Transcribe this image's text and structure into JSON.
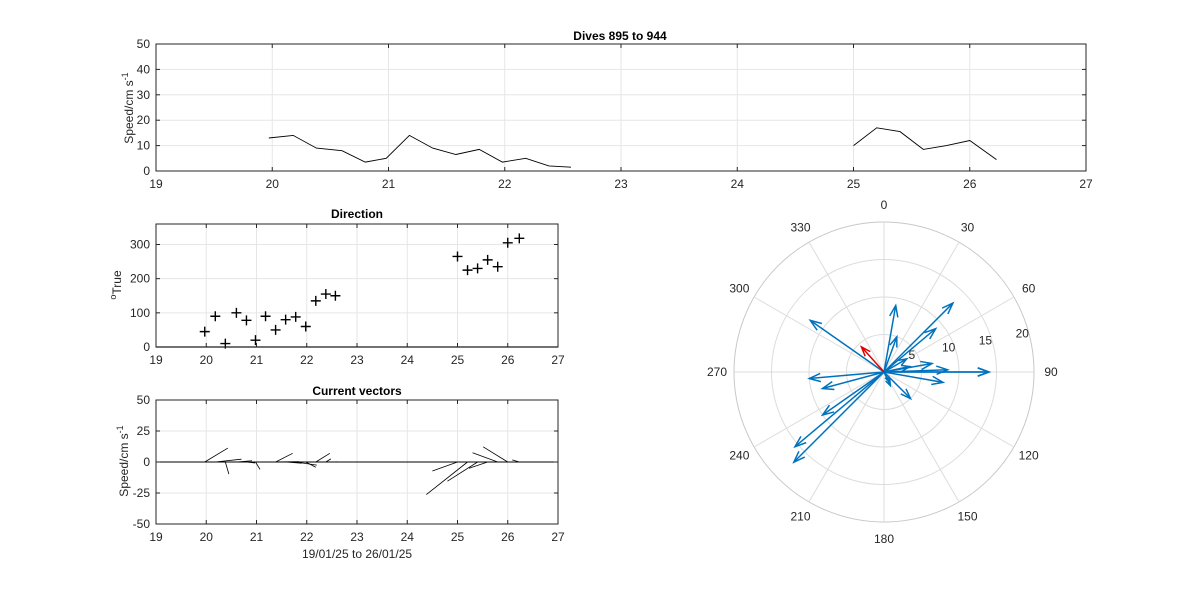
{
  "chart_data": [
    {
      "type": "line",
      "title": "Dives 895 to 944",
      "ylabel": "Speed/cm s",
      "ylabel_sup": "-1",
      "xlim": [
        19,
        27
      ],
      "ylim": [
        0,
        50
      ],
      "xticks": [
        19,
        20,
        21,
        22,
        23,
        24,
        25,
        26,
        27
      ],
      "yticks": [
        0,
        10,
        20,
        30,
        40,
        50
      ],
      "grid": true,
      "segments": [
        {
          "x": [
            19.97,
            20.18,
            20.38,
            20.6,
            20.8,
            20.98,
            21.18,
            21.38,
            21.58,
            21.78,
            21.98,
            22.18,
            22.38,
            22.57
          ],
          "y": [
            13,
            14,
            9,
            8,
            3.5,
            5,
            14,
            9,
            6.5,
            8.5,
            3.5,
            5,
            2,
            1.5
          ]
        },
        {
          "x": [
            25.0,
            25.2,
            25.4,
            25.6,
            25.8,
            26.0,
            26.23
          ],
          "y": [
            10,
            17,
            15.5,
            8.5,
            10,
            12,
            4.5
          ]
        }
      ]
    },
    {
      "type": "scatter",
      "title": "Direction",
      "ylabel": "True",
      "ylabel_prefix": "o",
      "xlim": [
        19,
        27
      ],
      "ylim": [
        0,
        360
      ],
      "xticks": [
        19,
        20,
        21,
        22,
        23,
        24,
        25,
        26,
        27
      ],
      "yticks": [
        0,
        100,
        200,
        300
      ],
      "grid": true,
      "x": [
        19.97,
        20.18,
        20.38,
        20.6,
        20.8,
        20.98,
        21.18,
        21.38,
        21.58,
        21.78,
        21.98,
        22.18,
        22.38,
        22.57,
        25.0,
        25.2,
        25.4,
        25.6,
        25.8,
        26.0,
        26.23
      ],
      "y": [
        45,
        90,
        10,
        100,
        78,
        20,
        90,
        50,
        80,
        88,
        60,
        135,
        155,
        150,
        265,
        225,
        230,
        255,
        235,
        305,
        318
      ]
    },
    {
      "type": "line",
      "title": "Current vectors",
      "ylabel": "Speed/cm s",
      "ylabel_sup": "-1",
      "xlabel": "19/01/25 to 26/01/25",
      "xlim": [
        19,
        27
      ],
      "ylim": [
        -50,
        50
      ],
      "xticks": [
        19,
        20,
        21,
        22,
        23,
        24,
        25,
        26,
        27
      ],
      "yticks": [
        -50,
        -25,
        0,
        25,
        50
      ],
      "grid": true,
      "vectors": [
        {
          "x": 19.97,
          "u": 0.46,
          "v": 0.45
        },
        {
          "x": 20.18,
          "u": 0.52,
          "v": 0.09
        },
        {
          "x": 20.38,
          "u": 0.07,
          "v": -0.39
        },
        {
          "x": 20.6,
          "u": 0.31,
          "v": 0.04
        },
        {
          "x": 20.8,
          "u": 0.17,
          "v": -0.03
        },
        {
          "x": 20.98,
          "u": 0.09,
          "v": -0.24
        },
        {
          "x": 21.18,
          "u": 0.67,
          "v": 0.01
        },
        {
          "x": 21.38,
          "u": 0.34,
          "v": 0.28
        },
        {
          "x": 21.58,
          "u": 0.32,
          "v": -0.04
        },
        {
          "x": 21.78,
          "u": 0.42,
          "v": -0.1
        },
        {
          "x": 21.98,
          "u": 0.2,
          "v": -0.17
        },
        {
          "x": 22.18,
          "u": 0.28,
          "v": 0.28
        },
        {
          "x": 22.38,
          "u": 0.1,
          "v": 0.1
        },
        {
          "x": 22.57,
          "u": 0.02,
          "v": 0.01
        },
        {
          "x": 25.0,
          "u": -0.5,
          "v": -0.29
        },
        {
          "x": 25.2,
          "u": -0.82,
          "v": -1.05
        },
        {
          "x": 25.4,
          "u": -0.6,
          "v": -0.62
        },
        {
          "x": 25.6,
          "u": -0.37,
          "v": -0.2
        },
        {
          "x": 25.8,
          "u": -0.5,
          "v": 0.3
        },
        {
          "x": 26.0,
          "u": -0.49,
          "v": 0.49
        },
        {
          "x": 26.23,
          "u": -0.14,
          "v": 0.07
        }
      ]
    },
    {
      "type": "line",
      "polar": true,
      "theta_ticks": [
        "0",
        "30",
        "60",
        "90",
        "120",
        "150",
        "180",
        "210",
        "240",
        "270",
        "300",
        "330"
      ],
      "r_ticks": [
        "5",
        "10",
        "15",
        "20"
      ],
      "rlim": [
        0,
        20
      ],
      "arrows": [
        {
          "dir": 45,
          "speed": 13
        },
        {
          "dir": 90,
          "speed": 14
        },
        {
          "dir": 10,
          "speed": 9
        },
        {
          "dir": 100,
          "speed": 8
        },
        {
          "dir": 78,
          "speed": 3.5
        },
        {
          "dir": 20,
          "speed": 5
        },
        {
          "dir": 90,
          "speed": 14
        },
        {
          "dir": 50,
          "speed": 9
        },
        {
          "dir": 80,
          "speed": 6.5
        },
        {
          "dir": 88,
          "speed": 8.5
        },
        {
          "dir": 60,
          "speed": 3.5
        },
        {
          "dir": 135,
          "speed": 5
        },
        {
          "dir": 155,
          "speed": 2
        },
        {
          "dir": 150,
          "speed": 1.5
        },
        {
          "dir": 265,
          "speed": 10
        },
        {
          "dir": 225,
          "speed": 17
        },
        {
          "dir": 230,
          "speed": 15.5
        },
        {
          "dir": 255,
          "speed": 8.5
        },
        {
          "dir": 235,
          "speed": 10
        },
        {
          "dir": 305,
          "speed": 12
        },
        {
          "dir": 318,
          "speed": 4.5
        }
      ],
      "colors": {
        "arrow": "#0072bd",
        "last_arrow": "#e00000"
      }
    }
  ]
}
